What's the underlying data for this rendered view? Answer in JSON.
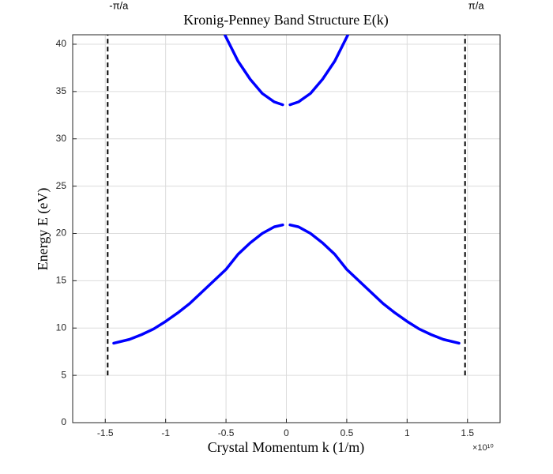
{
  "chart_data": {
    "type": "line",
    "title": "Kronig-Penney Band Structure E(k)",
    "x_label": "Crystal Momentum k (1/m)",
    "y_label": "Energy E (eV)",
    "x_multiplier_label": "×10¹⁰",
    "xlim": [
      -1.77,
      1.77
    ],
    "ylim": [
      0,
      41
    ],
    "xticks": [
      -1.5,
      -1,
      -0.5,
      0,
      0.5,
      1,
      1.5
    ],
    "yticks": [
      0,
      5,
      10,
      15,
      20,
      25,
      30,
      35,
      40
    ],
    "grid": true,
    "series": [
      {
        "color": "#0000ff",
        "x": [
          -1.43,
          -1.3,
          -1.2,
          -1.1,
          -1.0,
          -0.9,
          -0.8,
          -0.7,
          -0.6,
          -0.5,
          -0.4,
          -0.3,
          -0.2,
          -0.1,
          -0.03,
          0,
          0.03,
          0.1,
          0.2,
          0.3,
          0.4,
          0.5,
          0.6,
          0.7,
          0.8,
          0.9,
          1.0,
          1.1,
          1.2,
          1.3,
          1.43
        ],
        "values": [
          8.4,
          8.8,
          9.3,
          9.9,
          10.7,
          11.6,
          12.6,
          13.8,
          15.0,
          16.2,
          17.8,
          19.0,
          20.0,
          20.7,
          20.9,
          null,
          20.9,
          20.7,
          20.0,
          19.0,
          17.8,
          16.2,
          15.0,
          13.8,
          12.6,
          11.6,
          10.7,
          9.9,
          9.3,
          8.8,
          8.4
        ]
      },
      {
        "color": "#0000ff",
        "x": [
          -0.51,
          -0.4,
          -0.3,
          -0.2,
          -0.1,
          -0.03,
          0,
          0.03,
          0.1,
          0.2,
          0.3,
          0.4,
          0.51
        ],
        "values": [
          41,
          38.2,
          36.3,
          34.8,
          33.9,
          33.6,
          null,
          33.6,
          33.9,
          34.8,
          36.3,
          38.2,
          41
        ]
      }
    ],
    "zone_boundaries": [
      {
        "value": -1.48,
        "label": "-π/a"
      },
      {
        "value": 1.48,
        "label": "π/a"
      }
    ],
    "zone_boundary_ymin": 5
  }
}
